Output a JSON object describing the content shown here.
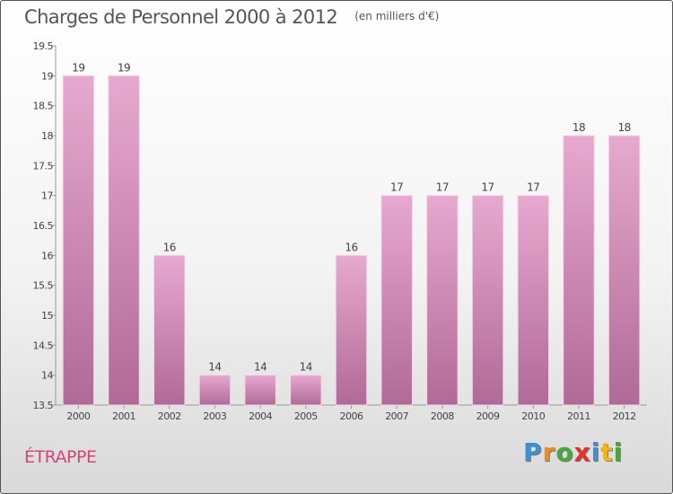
{
  "chart_data": {
    "type": "bar",
    "title": "Charges de Personnel 2000 à 2012",
    "subtitle": "(en milliers d'€)",
    "categories": [
      "2000",
      "2001",
      "2002",
      "2003",
      "2004",
      "2005",
      "2006",
      "2007",
      "2008",
      "2009",
      "2010",
      "2011",
      "2012"
    ],
    "values": [
      19,
      19,
      16,
      14,
      14,
      14,
      16,
      17,
      17,
      17,
      17,
      18,
      18
    ],
    "data_labels": [
      "19",
      "19",
      "16",
      "14",
      "14",
      "14",
      "16",
      "17",
      "17",
      "17",
      "17",
      "18",
      "18"
    ],
    "ylim": [
      13.5,
      19.5
    ],
    "yticks": [
      13.5,
      14,
      14.5,
      15,
      15.5,
      16,
      16.5,
      17,
      17.5,
      18,
      18.5,
      19,
      19.5
    ],
    "ytick_labels": [
      "13.5",
      "14",
      "14.5",
      "15",
      "15.5",
      "16",
      "16.5",
      "17",
      "17.5",
      "18",
      "18.5",
      "19",
      "19.5"
    ],
    "grid": false,
    "bar_color_top": "#e7a9cf",
    "bar_color_bottom": "#b06a96",
    "xlabel": "",
    "ylabel": ""
  },
  "commune": "ÉTRAPPE",
  "logo": {
    "letters": [
      "P",
      "r",
      "o",
      "x",
      "i",
      "t",
      "i"
    ],
    "colors": [
      "#3d8fd6",
      "#f08a1e",
      "#46a83b",
      "#e8302a",
      "#3d8fd6",
      "#f0b51e",
      "#46a83b"
    ]
  }
}
